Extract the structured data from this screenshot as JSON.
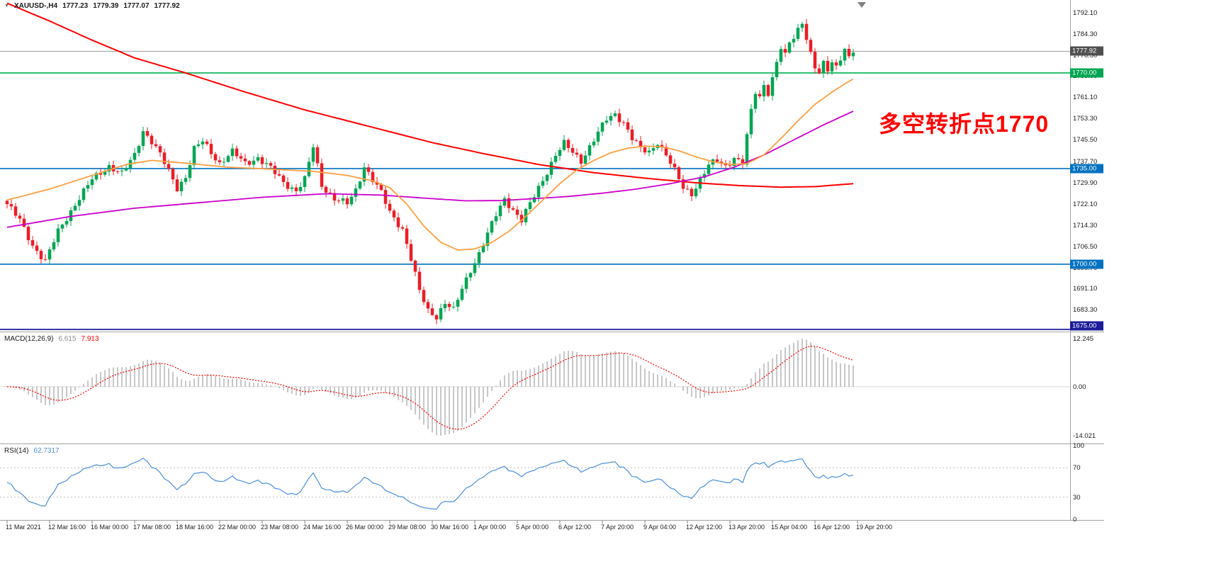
{
  "header": {
    "dropdown_icon": "▼",
    "title": "XAUUSD-,H4",
    "open": "1777.23",
    "high": "1779.39",
    "low": "1777.07",
    "close": "1777.92"
  },
  "chart_data": [
    {
      "type": "candlestick",
      "symbol": "XAUUSD-",
      "timeframe": "H4",
      "annotation": {
        "text": "多空转折点1770",
        "color": "#FF0000"
      },
      "y_axis": {
        "min": 1675.3,
        "max": 1796.7,
        "tick_labels": [
          "1792.10",
          "1784.30",
          "1776.50",
          "1768.90",
          "1761.10",
          "1753.30",
          "1745.50",
          "1737.70",
          "1729.90",
          "1722.10",
          "1714.30",
          "1706.50",
          "1698.70",
          "1691.10",
          "1683.30"
        ]
      },
      "x_axis": {
        "tick_labels": [
          "11 Mar 2021",
          "12 Mar 16:00",
          "16 Mar 00:00",
          "17 Mar 08:00",
          "18 Mar 16:00",
          "22 Mar 00:00",
          "23 Mar 08:00",
          "24 Mar 16:00",
          "26 Mar 00:00",
          "29 Mar 08:00",
          "30 Mar 16:00",
          "1 Apr 00:00",
          "5 Apr 00:00",
          "6 Apr 12:00",
          "7 Apr 20:00",
          "9 Apr 04:00",
          "12 Apr 12:00",
          "13 Apr 20:00",
          "15 Apr 04:00",
          "16 Apr 12:00",
          "19 Apr 20:00"
        ]
      },
      "horizontal_lines": [
        {
          "label": "1777.92",
          "price": 1777.92,
          "color": "#9A9A9A",
          "width": 1,
          "tag_color": "#4F4F4F",
          "role": "bid-price-line"
        },
        {
          "label": "1770.00",
          "price": 1770,
          "color": "#00B050",
          "width": 1.6,
          "tag_color": "#00A651",
          "role": "horizontal-line"
        },
        {
          "label": "1735.00",
          "price": 1735,
          "color": "#0070C0",
          "width": 1.6,
          "tag_color": "#0070C0",
          "role": "horizontal-line"
        },
        {
          "label": "1700.00",
          "price": 1700,
          "color": "#0070C0",
          "width": 1.6,
          "tag_color": "#0070C0",
          "role": "horizontal-line"
        },
        {
          "label": "1675.00",
          "price": 1675,
          "color": "#1C1C99",
          "width": 1.8,
          "tag_color": "#1C1C99",
          "role": "horizontal-line"
        }
      ],
      "moving_averages": [
        {
          "name": "ma-slow-red",
          "color": "#FF0000",
          "width": 2,
          "points": [
            [
              0,
              1795.5
            ],
            [
              10,
              1789
            ],
            [
              20,
              1782
            ],
            [
              30,
              1775.5
            ],
            [
              42,
              1770
            ],
            [
              55,
              1763.5
            ],
            [
              70,
              1756.5
            ],
            [
              85,
              1750.5
            ],
            [
              100,
              1744.5
            ],
            [
              112,
              1740.5
            ],
            [
              125,
              1736.5
            ],
            [
              138,
              1733.5
            ],
            [
              150,
              1731.5
            ],
            [
              162,
              1729.8
            ],
            [
              172,
              1728.8
            ],
            [
              182,
              1728.2
            ],
            [
              190,
              1728.4
            ],
            [
              199,
              1729.5
            ]
          ]
        },
        {
          "name": "ma-mid-magenta",
          "color": "#CC00CC",
          "width": 1.8,
          "points": [
            [
              0,
              1713.5
            ],
            [
              15,
              1717.5
            ],
            [
              30,
              1720.5
            ],
            [
              45,
              1722.5
            ],
            [
              60,
              1724.5
            ],
            [
              75,
              1725.8
            ],
            [
              88,
              1725.3
            ],
            [
              100,
              1724
            ],
            [
              108,
              1723.2
            ],
            [
              116,
              1723.3
            ],
            [
              124,
              1724
            ],
            [
              132,
              1724.8
            ],
            [
              140,
              1726
            ],
            [
              148,
              1727.5
            ],
            [
              156,
              1729.5
            ],
            [
              164,
              1732
            ],
            [
              171,
              1735.5
            ],
            [
              178,
              1740
            ],
            [
              185,
              1745.5
            ],
            [
              192,
              1751
            ],
            [
              199,
              1756
            ]
          ]
        },
        {
          "name": "ma-fast-orange",
          "color": "#FF9F40",
          "width": 1.8,
          "points": [
            [
              0,
              1723.5
            ],
            [
              10,
              1727.5
            ],
            [
              20,
              1732.5
            ],
            [
              28,
              1736.5
            ],
            [
              34,
              1738
            ],
            [
              42,
              1737
            ],
            [
              52,
              1735.5
            ],
            [
              62,
              1734.8
            ],
            [
              72,
              1734
            ],
            [
              80,
              1732.5
            ],
            [
              86,
              1730.5
            ],
            [
              90,
              1728
            ],
            [
              94,
              1722
            ],
            [
              98,
              1714
            ],
            [
              102,
              1708
            ],
            [
              106,
              1705.2
            ],
            [
              110,
              1705.6
            ],
            [
              114,
              1708
            ],
            [
              118,
              1712
            ],
            [
              122,
              1717.5
            ],
            [
              126,
              1723.5
            ],
            [
              130,
              1729.5
            ],
            [
              134,
              1734.5
            ],
            [
              138,
              1738
            ],
            [
              142,
              1740.8
            ],
            [
              146,
              1742.5
            ],
            [
              150,
              1743.2
            ],
            [
              154,
              1743
            ],
            [
              158,
              1741.5
            ],
            [
              162,
              1739.3
            ],
            [
              166,
              1737.5
            ],
            [
              170,
              1736.5
            ],
            [
              174,
              1736.8
            ],
            [
              178,
              1740
            ],
            [
              182,
              1746
            ],
            [
              186,
              1752.5
            ],
            [
              190,
              1758.5
            ],
            [
              194,
              1763
            ],
            [
              197,
              1766
            ],
            [
              199,
              1767.8
            ]
          ]
        }
      ],
      "candles": {
        "count": 200,
        "up_color": "#00A651",
        "down_color": "#EE1C25",
        "noise": 0.9,
        "close_anchors": [
          [
            0,
            1722
          ],
          [
            3,
            1716
          ],
          [
            6,
            1707
          ],
          [
            9,
            1701
          ],
          [
            12,
            1712
          ],
          [
            16,
            1722
          ],
          [
            20,
            1731
          ],
          [
            24,
            1736
          ],
          [
            27,
            1733
          ],
          [
            30,
            1740
          ],
          [
            32,
            1749
          ],
          [
            34,
            1745
          ],
          [
            36,
            1740
          ],
          [
            38,
            1734
          ],
          [
            40,
            1728
          ],
          [
            42,
            1732
          ],
          [
            44,
            1742
          ],
          [
            46,
            1745
          ],
          [
            48,
            1741
          ],
          [
            50,
            1737
          ],
          [
            53,
            1741
          ],
          [
            56,
            1737
          ],
          [
            59,
            1739
          ],
          [
            62,
            1735
          ],
          [
            65,
            1730
          ],
          [
            68,
            1727
          ],
          [
            70,
            1731
          ],
          [
            72,
            1743
          ],
          [
            74,
            1729
          ],
          [
            77,
            1724
          ],
          [
            80,
            1722
          ],
          [
            82,
            1727
          ],
          [
            84,
            1736
          ],
          [
            86,
            1731
          ],
          [
            88,
            1726
          ],
          [
            90,
            1719
          ],
          [
            93,
            1713
          ],
          [
            95,
            1702
          ],
          [
            97,
            1690
          ],
          [
            99,
            1683
          ],
          [
            101,
            1681
          ],
          [
            103,
            1686
          ],
          [
            105,
            1683
          ],
          [
            107,
            1691
          ],
          [
            109,
            1698
          ],
          [
            111,
            1704
          ],
          [
            113,
            1711
          ],
          [
            115,
            1718
          ],
          [
            117,
            1724
          ],
          [
            119,
            1720
          ],
          [
            121,
            1716
          ],
          [
            123,
            1722
          ],
          [
            125,
            1728
          ],
          [
            127,
            1734
          ],
          [
            129,
            1740
          ],
          [
            131,
            1744
          ],
          [
            133,
            1741
          ],
          [
            135,
            1738
          ],
          [
            137,
            1743
          ],
          [
            139,
            1748
          ],
          [
            141,
            1753
          ],
          [
            143,
            1755
          ],
          [
            145,
            1752
          ],
          [
            147,
            1746
          ],
          [
            149,
            1742
          ],
          [
            151,
            1741
          ],
          [
            153,
            1745
          ],
          [
            155,
            1740
          ],
          [
            157,
            1734
          ],
          [
            159,
            1728
          ],
          [
            161,
            1726
          ],
          [
            163,
            1731
          ],
          [
            165,
            1736
          ],
          [
            167,
            1738
          ],
          [
            169,
            1736
          ],
          [
            171,
            1739
          ],
          [
            173,
            1737
          ],
          [
            175,
            1756
          ],
          [
            176,
            1763
          ],
          [
            177,
            1761
          ],
          [
            178,
            1766
          ],
          [
            179,
            1763
          ],
          [
            180,
            1768
          ],
          [
            181,
            1774
          ],
          [
            182,
            1779
          ],
          [
            183,
            1776
          ],
          [
            184,
            1781
          ],
          [
            185,
            1783
          ],
          [
            186,
            1786
          ],
          [
            187,
            1789
          ],
          [
            188,
            1783
          ],
          [
            189,
            1777
          ],
          [
            190,
            1772
          ],
          [
            191,
            1769.5
          ],
          [
            192,
            1773
          ],
          [
            193,
            1771
          ],
          [
            194,
            1774
          ],
          [
            195,
            1772.5
          ],
          [
            196,
            1776
          ],
          [
            197,
            1779
          ],
          [
            198,
            1775.5
          ],
          [
            199,
            1777.92
          ]
        ]
      }
    },
    {
      "type": "macd",
      "name": "MACD(12,26,9)",
      "fast": 12,
      "slow": 26,
      "signal": 9,
      "current_values": [
        "6.615",
        "7.913"
      ],
      "histogram_color": "#B9B9B9",
      "signal_color": "#FF0000",
      "y_axis": {
        "min": -14.021,
        "max": 12.245,
        "tick_labels": [
          "12.245",
          "0.00",
          "-14.021"
        ]
      }
    },
    {
      "type": "rsi",
      "name": "RSI(14)",
      "period": 14,
      "current_value": "62.7317",
      "line_color": "#4A90D9",
      "level_color": "#C0C0C0",
      "levels": [
        70,
        30
      ],
      "y_axis": {
        "min": 0,
        "max": 100,
        "tick_labels": [
          "100",
          "70",
          "30",
          "0"
        ]
      }
    }
  ]
}
